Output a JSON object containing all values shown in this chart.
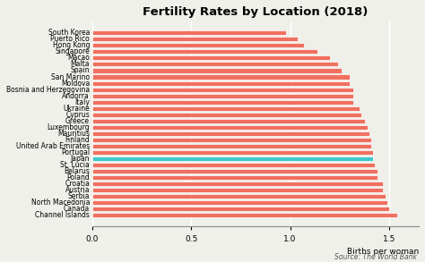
{
  "title": "Fertility Rates by Location (2018)",
  "xlabel": "Births per woman",
  "source": "Source: The World Bank",
  "categories": [
    "South Korea",
    "Puerto Rico",
    "Hong Kong",
    "Singapore",
    "Macao",
    "Malta",
    "Spain",
    "San Marino",
    "Moldova",
    "Bosnia and Herzegovina",
    "Andorra",
    "Italy",
    "Ukraine",
    "Cyprus",
    "Greece",
    "Luxembourg",
    "Mauritius",
    "Finland",
    "United Arab Emirates",
    "Portugal",
    "Japan",
    "St. Lucia",
    "Belarus",
    "Poland",
    "Croatia",
    "Austria",
    "Serbia",
    "North Macedonia",
    "Canada",
    "Channel Islands"
  ],
  "values": [
    0.98,
    1.04,
    1.07,
    1.14,
    1.2,
    1.24,
    1.26,
    1.3,
    1.3,
    1.32,
    1.32,
    1.32,
    1.35,
    1.36,
    1.38,
    1.39,
    1.4,
    1.41,
    1.41,
    1.42,
    1.42,
    1.43,
    1.44,
    1.44,
    1.47,
    1.47,
    1.48,
    1.49,
    1.5,
    1.54
  ],
  "bar_colors": [
    "#F07060",
    "#F07060",
    "#F07060",
    "#F07060",
    "#F07060",
    "#F07060",
    "#F07060",
    "#F07060",
    "#F07060",
    "#F07060",
    "#F07060",
    "#F07060",
    "#F07060",
    "#F07060",
    "#F07060",
    "#F07060",
    "#F07060",
    "#F07060",
    "#F07060",
    "#F07060",
    "#40C8C8",
    "#F07060",
    "#F07060",
    "#F07060",
    "#F07060",
    "#F07060",
    "#F07060",
    "#F07060",
    "#F07060",
    "#F07060"
  ],
  "xlim": [
    0,
    1.65
  ],
  "xticks": [
    0.0,
    0.5,
    1.0,
    1.5
  ],
  "background_color": "#f0f0eb",
  "bar_height": 0.72,
  "title_fontsize": 9.5,
  "label_fontsize": 5.5,
  "tick_fontsize": 6.5
}
